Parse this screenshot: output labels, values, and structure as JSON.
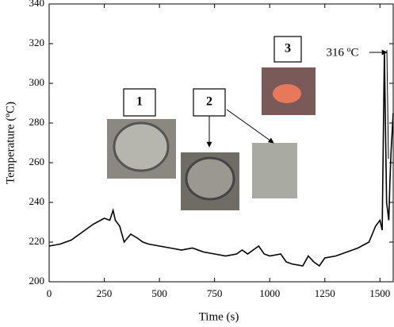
{
  "chart_data": {
    "type": "line",
    "x_label": "Time (s)",
    "y_label": "Temperature (ºC)",
    "xlim": [
      0,
      1560
    ],
    "ylim": [
      200,
      340
    ],
    "xticks": [
      0,
      250,
      500,
      750,
      1000,
      1250,
      1500
    ],
    "yticks": [
      200,
      220,
      240,
      260,
      280,
      300,
      320,
      340
    ],
    "grid": false,
    "series": [
      {
        "color": "#000000",
        "x": [
          0,
          50,
          100,
          150,
          200,
          250,
          275,
          290,
          300,
          320,
          340,
          370,
          400,
          425,
          450,
          500,
          550,
          600,
          650,
          700,
          750,
          800,
          850,
          875,
          900,
          950,
          975,
          1000,
          1050,
          1075,
          1100,
          1150,
          1175,
          1200,
          1225,
          1250,
          1300,
          1350,
          1400,
          1450,
          1480,
          1500,
          1510,
          1520,
          1530,
          1540,
          1545,
          1550,
          1555,
          1560
        ],
        "values": [
          218,
          219,
          221,
          225,
          229,
          232,
          231,
          236,
          231,
          228,
          220,
          224,
          222,
          220,
          219,
          218,
          217,
          216,
          217,
          215,
          214,
          213,
          214,
          216,
          214,
          218,
          214,
          213,
          214,
          210,
          209,
          208,
          213,
          210,
          208,
          212,
          213,
          215,
          217,
          220,
          228,
          231,
          226,
          316,
          240,
          231,
          250,
          265,
          275,
          285
        ]
      }
    ],
    "annotations": [
      "316 ºC",
      "1",
      "2",
      "3"
    ]
  }
}
